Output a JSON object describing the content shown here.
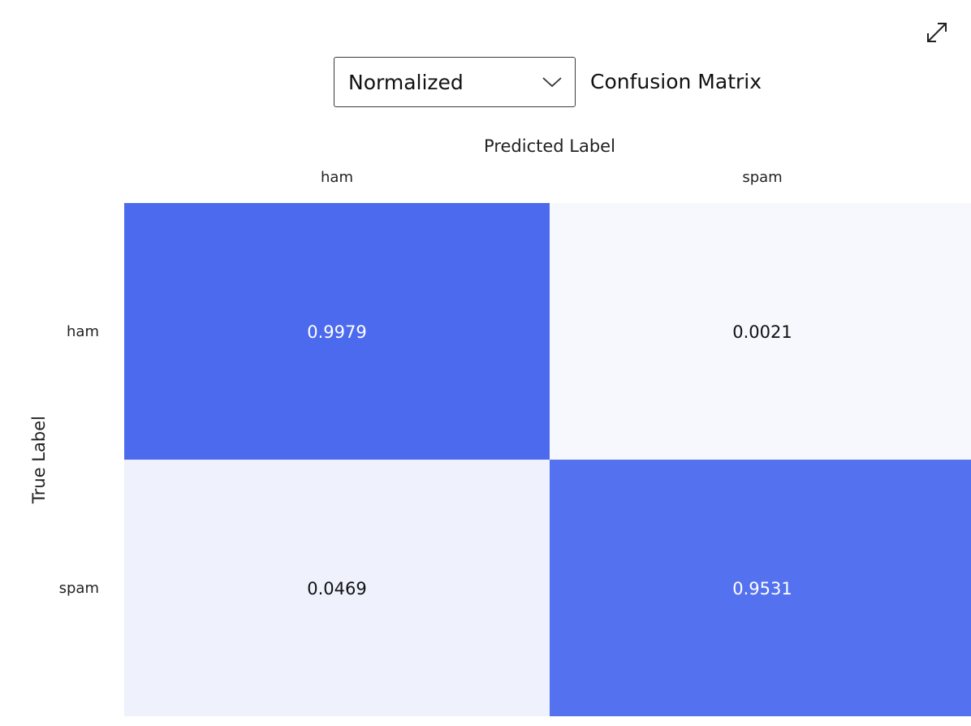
{
  "controls": {
    "mode_select": {
      "value": "Normalized"
    },
    "expand_icon": "expand-diagonal-arrows-icon"
  },
  "chart_data": {
    "type": "heatmap",
    "title": "Confusion Matrix",
    "xlabel": "Predicted Label",
    "ylabel": "True Label",
    "x_categories": [
      "ham",
      "spam"
    ],
    "y_categories": [
      "ham",
      "spam"
    ],
    "values": [
      [
        0.9979,
        0.0021
      ],
      [
        0.0469,
        0.9531
      ]
    ],
    "value_labels": [
      [
        "0.9979",
        "0.0021"
      ],
      [
        "0.0469",
        "0.9531"
      ]
    ],
    "color_scale": {
      "low": "#f7f8fd",
      "high": "#4c6aee"
    },
    "label_colors": {
      "on_dark": "#ffffff",
      "on_light": "#111111"
    },
    "grid": false,
    "legend": "none"
  }
}
